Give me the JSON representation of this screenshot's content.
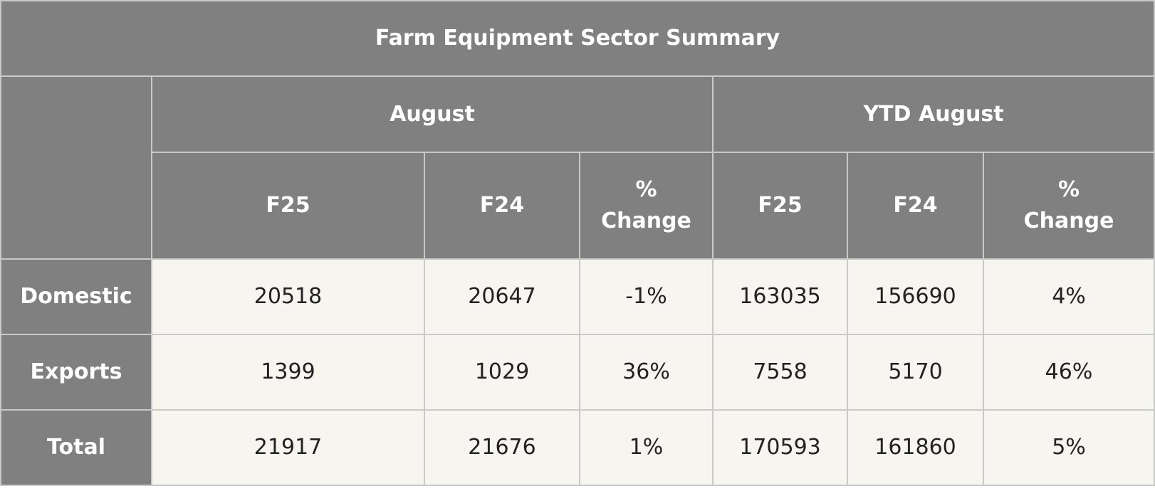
{
  "table": {
    "title": "Farm Equipment Sector Summary",
    "groups": [
      {
        "label": "August"
      },
      {
        "label": "YTD August"
      }
    ],
    "columns": [
      "F25",
      "F24",
      "%\nChange",
      "F25",
      "F24",
      "%\nChange"
    ],
    "rows": [
      {
        "label": "Domestic",
        "values": [
          "20518",
          "20647",
          "-1%",
          "163035",
          "156690",
          "4%"
        ]
      },
      {
        "label": "Exports",
        "values": [
          "1399",
          "1029",
          "36%",
          "7558",
          "5170",
          "46%"
        ]
      },
      {
        "label": "Total",
        "values": [
          "21917",
          "21676",
          "1%",
          "170593",
          "161860",
          "5%"
        ]
      }
    ]
  },
  "colors": {
    "header_bg": "#808080",
    "header_text": "#ffffff",
    "cell_bg": "#f6f5f0",
    "cell_text": "#222222",
    "border": "#c9c9c9"
  }
}
